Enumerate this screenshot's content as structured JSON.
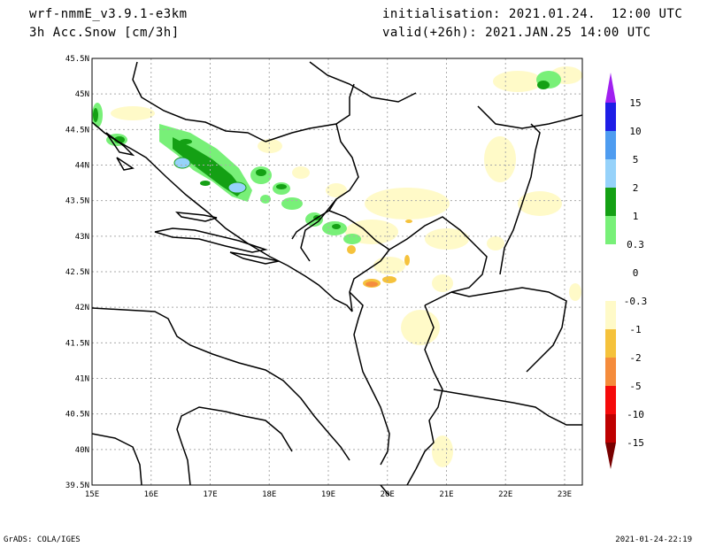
{
  "header": {
    "model": "wrf-nmmE_v3.9.1-e3km",
    "field": "3h Acc.Snow [cm/3h]",
    "init": "initialisation: 2021.01.24.  12:00 UTC",
    "valid": "valid(+26h): 2021.JAN.25 14:00 UTC"
  },
  "footer": {
    "left": "GrADS: COLA/IGES",
    "right": "2021-01-24-22:19"
  },
  "map": {
    "lon_labels": [
      "15E",
      "16E",
      "17E",
      "18E",
      "19E",
      "20E",
      "21E",
      "22E",
      "23E"
    ],
    "lat_labels": [
      "45.5N",
      "45N",
      "44.5N",
      "44N",
      "43.5N",
      "43N",
      "42.5N",
      "42N",
      "41.5N",
      "41N",
      "40.5N",
      "40N",
      "39.5N"
    ],
    "lon_range": [
      15,
      23.3
    ],
    "lat_range": [
      39.5,
      45.5
    ]
  },
  "colorbar": {
    "labels": [
      "15",
      "10",
      "5",
      "2",
      "1",
      "0.3",
      "0",
      "-0.3",
      "-1",
      "-2",
      "-5",
      "-10",
      "-15"
    ],
    "colors": [
      "#1e1ee6",
      "#4e9cf0",
      "#96d2fa",
      "#14a014",
      "#78f078",
      "#ffffff",
      "#ffffff",
      "#fffac8",
      "#f5c23c",
      "#f58c3c",
      "#f50a0a",
      "#be0000",
      "#780000"
    ],
    "top_arrow_color": "#a020f0",
    "bottom_arrow_color": "#780000"
  },
  "palette": {
    "land_line": "#000000",
    "grid": "#aaaaaa",
    "light_green": "#78f078",
    "green": "#14a014",
    "light_blue": "#96d2fa",
    "cream": "#fffac8",
    "gold": "#f5c23c",
    "orange": "#f58c3c"
  }
}
